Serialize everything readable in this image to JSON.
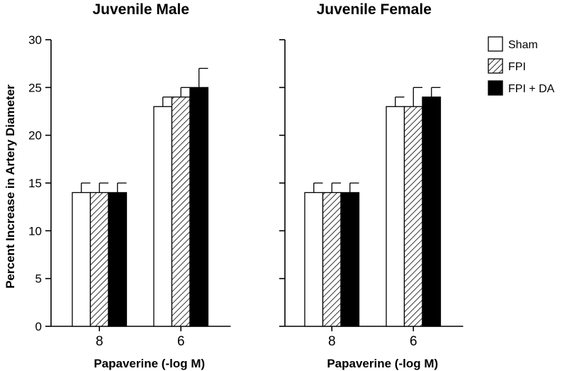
{
  "chart_data": [
    {
      "type": "bar",
      "title": "Juvenile Male",
      "xlabel": "Papaverine (-log M)",
      "ylabel": "Percent Increase in Artery Diameter",
      "categories": [
        "8",
        "6"
      ],
      "ylim": [
        0,
        30
      ],
      "yticks": [
        0,
        5,
        10,
        15,
        20,
        25,
        30
      ],
      "series": [
        {
          "name": "Sham",
          "values": [
            14,
            23
          ],
          "errors": [
            1,
            1
          ]
        },
        {
          "name": "FPI",
          "values": [
            14,
            24
          ],
          "errors": [
            1,
            1
          ]
        },
        {
          "name": "FPI + DA",
          "values": [
            14,
            25
          ],
          "errors": [
            1,
            2
          ]
        }
      ]
    },
    {
      "type": "bar",
      "title": "Juvenile Female",
      "xlabel": "Papaverine (-log M)",
      "ylabel": "",
      "categories": [
        "8",
        "6"
      ],
      "ylim": [
        0,
        30
      ],
      "yticks": [
        0,
        5,
        10,
        15,
        20,
        25,
        30
      ],
      "series": [
        {
          "name": "Sham",
          "values": [
            14,
            23
          ],
          "errors": [
            1,
            1
          ]
        },
        {
          "name": "FPI",
          "values": [
            14,
            23
          ],
          "errors": [
            1,
            2
          ]
        },
        {
          "name": "FPI + DA",
          "values": [
            14,
            24
          ],
          "errors": [
            1,
            1
          ]
        }
      ]
    }
  ],
  "legend": {
    "position": "top-right",
    "items": [
      {
        "name": "Sham",
        "fill": "#ffffff"
      },
      {
        "name": "FPI",
        "fill": "hatch"
      },
      {
        "name": "FPI + DA",
        "fill": "#000000"
      }
    ]
  }
}
